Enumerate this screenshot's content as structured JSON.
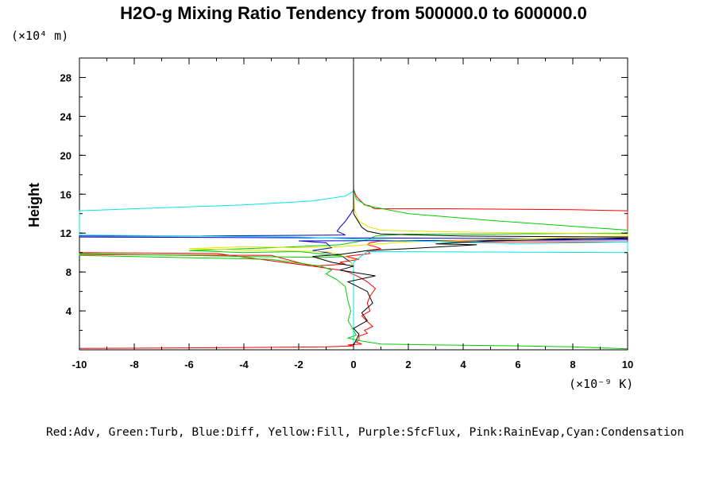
{
  "chart_data": {
    "type": "line",
    "title": "H2O-g Mixing Ratio Tendency from 500000.0 to 600000.0",
    "ylabel": "Height",
    "y_units": "(×10⁴ m)",
    "x_units": "(×10⁻⁹ K)",
    "xlim": [
      -10,
      10
    ],
    "ylim": [
      0,
      30
    ],
    "x_ticks": [
      "-10",
      "-8",
      "-6",
      "-4",
      "-2",
      "0",
      "2",
      "4",
      "6",
      "8",
      "10"
    ],
    "y_ticks": [
      "4",
      "8",
      "12",
      "16",
      "20",
      "24",
      "28"
    ],
    "grid": false,
    "legend": "Red:Adv, Green:Turb, Blue:Diff, Yellow:Fill, Purple:SfcFlux, Pink:RainEvap,Cyan:Condensation",
    "series": [
      {
        "name": "Adv",
        "color": "#ff0000",
        "x": [
          0,
          0,
          0.1,
          0.3,
          0.4,
          0.6,
          0.7,
          0.8,
          3.5,
          8,
          10,
          10,
          5,
          1,
          0.6,
          0.5,
          0.8,
          1,
          0.5,
          0.6,
          -0.3,
          0.2,
          -0.5,
          -0.3,
          -1.5,
          -5,
          -10,
          -10,
          -3,
          -1.5,
          -0.5,
          -0.2,
          0.2,
          0.5,
          0.8,
          0.6,
          0.5,
          0.6,
          0.3,
          0.5,
          0.7,
          0.4,
          0.5,
          0.2,
          0.2,
          0.1,
          0.3,
          -0.2,
          0,
          -0.5,
          -1,
          -3,
          -6,
          -10,
          -10
        ],
        "y": [
          30,
          16.5,
          15.8,
          15.2,
          14.9,
          14.8,
          14.6,
          14.5,
          14.5,
          14.4,
          14.3,
          11.1,
          11.1,
          11.2,
          11.0,
          10.8,
          10.6,
          10.4,
          10.2,
          9.9,
          9.6,
          9.3,
          9.0,
          8.8,
          8.6,
          9.9,
          10.0,
          9.8,
          9.7,
          8.6,
          8.2,
          8.0,
          7.5,
          7.0,
          6.3,
          5.5,
          4.8,
          4.0,
          3.5,
          2.9,
          2.4,
          2.0,
          1.7,
          1.4,
          1.0,
          0.8,
          0.6,
          0.5,
          0.4,
          0.35,
          0.3,
          0.25,
          0.2,
          0.15,
          0.1
        ]
      },
      {
        "name": "Turb",
        "color": "#00cc00",
        "x": [
          0,
          0,
          0.1,
          0.5,
          2,
          5,
          8,
          10,
          10,
          5,
          2,
          0.8,
          0.5,
          -0.5,
          -3,
          -6,
          -4,
          -2,
          -0.3,
          -1,
          -4,
          -10,
          -10,
          -3,
          -1.2,
          -0.8,
          -1,
          -0.6,
          -0.3,
          -0.2,
          -0.1,
          -0.2,
          -0.1,
          0,
          0.1,
          -0.2,
          0.3,
          1,
          3,
          6,
          8,
          10
        ],
        "y": [
          30,
          16.5,
          15.5,
          14.8,
          14.0,
          13.3,
          12.7,
          12.3,
          12.0,
          11.9,
          11.9,
          11.7,
          11.3,
          10.8,
          10.5,
          10.2,
          10.0,
          10.1,
          9.6,
          9.5,
          9.6,
          9.9,
          9.7,
          9.3,
          8.6,
          8.2,
          7.8,
          7.2,
          6.5,
          5.0,
          4.0,
          3.0,
          2.5,
          2.0,
          1.5,
          1.2,
          0.9,
          0.6,
          0.5,
          0.4,
          0.3,
          0.1
        ]
      },
      {
        "name": "Diff",
        "color": "#0000cc",
        "x": [
          0,
          0,
          -0.1,
          -0.3,
          -0.5,
          -0.6,
          -0.3,
          -6,
          -10,
          -10,
          10,
          10,
          -2,
          -1,
          -0.8,
          -1.5,
          -0.5,
          -0.3,
          -0.1,
          0,
          0,
          0,
          0,
          0
        ],
        "y": [
          30,
          14.5,
          14.0,
          13.2,
          12.6,
          12.2,
          11.8,
          11.7,
          11.7,
          11.6,
          11.4,
          11.3,
          11.2,
          11.0,
          10.5,
          10.2,
          9.8,
          9.4,
          9.0,
          8.5,
          6.0,
          3.0,
          1.0,
          0
        ]
      },
      {
        "name": "Fill",
        "color": "#e6e600",
        "x": [
          0,
          0,
          0.05,
          0.2,
          0.6,
          1,
          4,
          10,
          10,
          6,
          2,
          0.5,
          -0.5,
          -2,
          -4,
          -6,
          -3,
          -1,
          -0.2,
          0,
          0
        ],
        "y": [
          30,
          15.8,
          14.3,
          13.2,
          12.6,
          12.3,
          12.1,
          11.9,
          11.7,
          11.4,
          11.1,
          10.8,
          10.6,
          10.5,
          10.6,
          10.4,
          10.2,
          10.1,
          9.5,
          8.5,
          0
        ]
      },
      {
        "name": "Condensation",
        "color": "#00e5e5",
        "x": [
          0,
          0,
          -0.3,
          -1.5,
          -4,
          -7,
          -10,
          -10,
          -2,
          2,
          6,
          10,
          10,
          0.5,
          0,
          0,
          0
        ],
        "y": [
          30,
          16.3,
          15.8,
          15.3,
          14.9,
          14.6,
          14.3,
          11.8,
          11.6,
          11.2,
          10.9,
          11.1,
          10.0,
          10.1,
          9.0,
          6.0,
          0
        ]
      },
      {
        "name": "",
        "color": "#000000",
        "x": [
          0,
          0,
          0.3,
          0.5,
          1,
          4,
          10,
          10,
          5,
          3,
          4.5,
          2,
          0.5,
          -0.5,
          -1.5,
          -0.8,
          0,
          -0.5,
          0.8,
          -0.2,
          0.5,
          0.7,
          0.3,
          0.5,
          0,
          0.2,
          0.1,
          0,
          0
        ],
        "y": [
          30,
          14.0,
          12.6,
          12.2,
          11.9,
          11.7,
          11.6,
          11.5,
          11.2,
          10.9,
          10.8,
          10.4,
          10.2,
          9.8,
          9.6,
          9.0,
          8.6,
          8.2,
          7.6,
          7.0,
          6.0,
          4.8,
          3.8,
          3.0,
          2.2,
          1.6,
          1.0,
          0.5,
          0
        ]
      }
    ]
  }
}
